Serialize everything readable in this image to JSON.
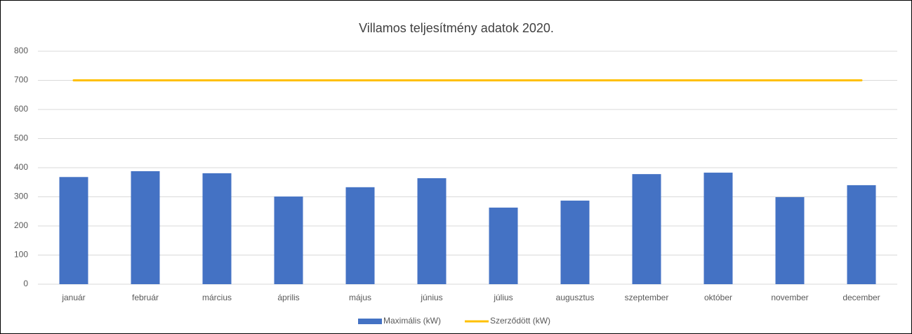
{
  "chart_data": {
    "type": "bar",
    "title": "Villamos teljesítmény adatok 2020.",
    "categories": [
      "január",
      "február",
      "március",
      "április",
      "május",
      "június",
      "július",
      "augusztus",
      "szeptember",
      "október",
      "november",
      "december"
    ],
    "series": [
      {
        "name": "Maximális (kW)",
        "type": "bar",
        "color": "#4472c4",
        "values": [
          368,
          388,
          381,
          301,
          333,
          364,
          263,
          287,
          378,
          383,
          299,
          340
        ]
      },
      {
        "name": "Szerződött (kW)",
        "type": "line",
        "color": "#ffc000",
        "values": [
          700,
          700,
          700,
          700,
          700,
          700,
          700,
          700,
          700,
          700,
          700,
          700
        ]
      }
    ],
    "ylim": [
      0,
      800
    ],
    "yticks": [
      0,
      100,
      200,
      300,
      400,
      500,
      600,
      700,
      800
    ],
    "grid": true,
    "legend": "bottom"
  }
}
